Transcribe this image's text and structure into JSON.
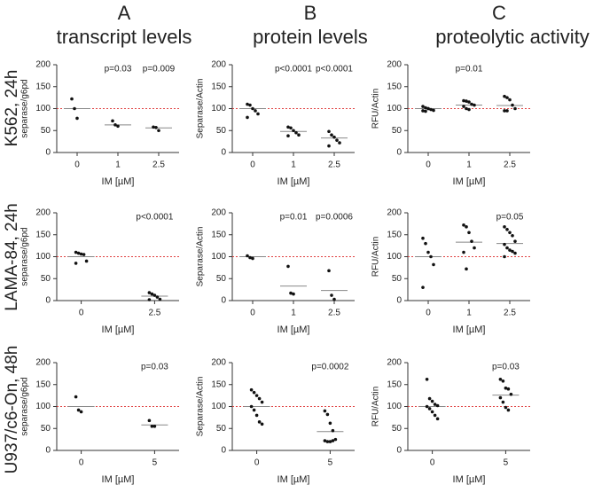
{
  "columns": [
    {
      "letter": "A",
      "title": "transcript levels"
    },
    {
      "letter": "B",
      "title": "protein levels"
    },
    {
      "letter": "C",
      "title": "proteolytic activity"
    }
  ],
  "rows": [
    "K562, 24h",
    "LAMA-84, 24h",
    "U937/c6-On, 48h"
  ],
  "chart_data": [
    {
      "type": "dotplot",
      "ylabel": "separase/g6pd",
      "xlabel": "IM [µM]",
      "categories": [
        "0",
        "1",
        "2.5"
      ],
      "points": [
        [
          122,
          100,
          78
        ],
        [
          72,
          63,
          60
        ],
        [
          58,
          57,
          50
        ]
      ],
      "medians": [
        100,
        63,
        56
      ],
      "pvalues": [
        null,
        "p=0.03",
        "p=0.009"
      ],
      "refline": 100,
      "refcolor": "#e04040",
      "color": "#111111",
      "ylim": [
        0,
        200
      ],
      "yticks": [
        0,
        50,
        100,
        150,
        200
      ]
    },
    {
      "type": "dotplot",
      "ylabel": "Separase/Actin",
      "xlabel": "IM [µM]",
      "categories": [
        "0",
        "1",
        "2.5"
      ],
      "points": [
        [
          110,
          108,
          100,
          95,
          88,
          80
        ],
        [
          58,
          56,
          50,
          45,
          40,
          38
        ],
        [
          48,
          40,
          35,
          28,
          22,
          15
        ]
      ],
      "medians": [
        100,
        48,
        33
      ],
      "pvalues": [
        null,
        "p<0.0001",
        "p<0.0001"
      ],
      "refline": 100,
      "refcolor": "#e04040",
      "color": "#111111",
      "ylim": [
        0,
        200
      ],
      "yticks": [
        0,
        50,
        100,
        150,
        200
      ]
    },
    {
      "type": "dotplot",
      "ylabel": "RFU/Actin",
      "xlabel": "IM [µM]",
      "categories": [
        "0",
        "1",
        "2.5"
      ],
      "points": [
        [
          105,
          102,
          100,
          98,
          96,
          95,
          94,
          100
        ],
        [
          118,
          117,
          115,
          110,
          108,
          105,
          100,
          98
        ],
        [
          128,
          125,
          120,
          108,
          100,
          95,
          95
        ]
      ],
      "medians": [
        100,
        108,
        107
      ],
      "pvalues": [
        null,
        "p=0.01",
        null
      ],
      "refline": 100,
      "refcolor": "#e04040",
      "color": "#111111",
      "ylim": [
        0,
        200
      ],
      "yticks": [
        0,
        50,
        100,
        150,
        200
      ]
    },
    {
      "type": "dotplot",
      "ylabel": "separase/g6pd",
      "xlabel": "IM [µM]",
      "categories": [
        "0",
        "2.5"
      ],
      "points": [
        [
          110,
          108,
          106,
          105,
          90,
          85
        ],
        [
          18,
          15,
          12,
          8,
          3,
          2
        ]
      ],
      "medians": [
        100,
        10
      ],
      "pvalues": [
        null,
        "p<0.0001"
      ],
      "refline": 100,
      "refcolor": "#e04040",
      "color": "#111111",
      "ylim": [
        0,
        200
      ],
      "yticks": [
        0,
        50,
        100,
        150,
        200
      ]
    },
    {
      "type": "dotplot",
      "ylabel": "Separase/Actin",
      "xlabel": "IM [µM]",
      "categories": [
        "0",
        "1",
        "2.5"
      ],
      "points": [
        [
          102,
          98,
          96
        ],
        [
          78,
          17,
          15
        ],
        [
          68,
          12,
          3
        ]
      ],
      "medians": [
        100,
        33,
        23
      ],
      "pvalues": [
        null,
        "p=0.01",
        "p=0.0006"
      ],
      "refline": 100,
      "refcolor": "#e04040",
      "color": "#111111",
      "ylim": [
        0,
        200
      ],
      "yticks": [
        0,
        50,
        100,
        150,
        200
      ]
    },
    {
      "type": "dotplot",
      "ylabel": "RFU/Actin",
      "xlabel": "IM [µM]",
      "categories": [
        "0",
        "1",
        "2.5"
      ],
      "points": [
        [
          142,
          130,
          110,
          100,
          82,
          30
        ],
        [
          172,
          168,
          155,
          135,
          120,
          110,
          72
        ],
        [
          168,
          162,
          155,
          148,
          135,
          128,
          120,
          115,
          112,
          108,
          100
        ]
      ],
      "medians": [
        100,
        133,
        130
      ],
      "pvalues": [
        null,
        null,
        "p=0.05"
      ],
      "refline": 100,
      "refcolor": "#e04040",
      "color": "#111111",
      "ylim": [
        0,
        200
      ],
      "yticks": [
        0,
        50,
        100,
        150,
        200
      ]
    },
    {
      "type": "dotplot",
      "ylabel": "separase/g6pd",
      "xlabel": "IM [µM]",
      "categories": [
        "0",
        "5"
      ],
      "points": [
        [
          122,
          92,
          88
        ],
        [
          68,
          55,
          55
        ]
      ],
      "medians": [
        100,
        58
      ],
      "pvalues": [
        null,
        "p=0.03"
      ],
      "refline": 100,
      "refcolor": "#e04040",
      "color": "#111111",
      "ylim": [
        0,
        200
      ],
      "yticks": [
        0,
        50,
        100,
        150,
        200
      ]
    },
    {
      "type": "dotplot",
      "ylabel": "Separase/Actin",
      "xlabel": "IM [µM]",
      "categories": [
        "0",
        "5"
      ],
      "points": [
        [
          138,
          132,
          125,
          118,
          110,
          100,
          92,
          80,
          65,
          60
        ],
        [
          90,
          82,
          62,
          45,
          25,
          22,
          20,
          20,
          22
        ]
      ],
      "medians": [
        100,
        43
      ],
      "pvalues": [
        null,
        "p=0.0002"
      ],
      "refline": 100,
      "refcolor": "#e04040",
      "color": "#111111",
      "ylim": [
        0,
        200
      ],
      "yticks": [
        0,
        50,
        100,
        150,
        200
      ]
    },
    {
      "type": "dotplot",
      "ylabel": "RFU/Actin",
      "xlabel": "IM [µM]",
      "categories": [
        "0",
        "5"
      ],
      "points": [
        [
          162,
          118,
          112,
          105,
          102,
          100,
          95,
          88,
          80,
          72
        ],
        [
          162,
          158,
          142,
          140,
          128,
          120,
          110,
          98,
          92
        ]
      ],
      "medians": [
        100,
        126
      ],
      "pvalues": [
        null,
        "p=0.03"
      ],
      "refline": 100,
      "refcolor": "#e04040",
      "color": "#111111",
      "ylim": [
        0,
        200
      ],
      "yticks": [
        0,
        50,
        100,
        150,
        200
      ]
    }
  ]
}
